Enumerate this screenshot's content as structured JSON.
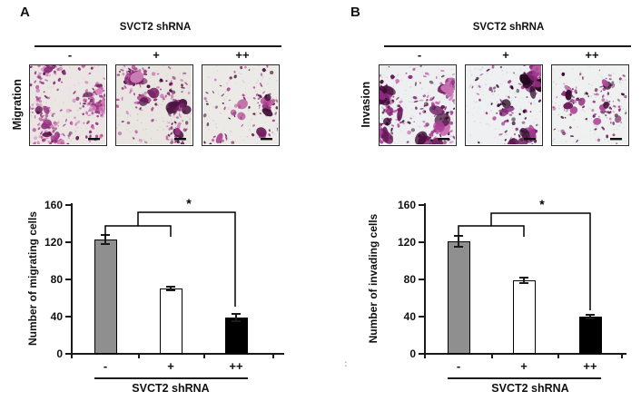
{
  "figure": {
    "background": "#ffffff",
    "stray_mark": ":",
    "panels": [
      {
        "letter": "A",
        "treatment_header": "SVCT2 shRNA",
        "doses": [
          "-",
          "+",
          "++"
        ],
        "row_label": "Migration",
        "micrographs": [
          {
            "dose": "-",
            "description": "dense crystal-violet stained migrated cells"
          },
          {
            "dose": "+",
            "description": "moderate stained migrated cells"
          },
          {
            "dose": "++",
            "description": "sparse stained migrated cells"
          }
        ]
      },
      {
        "letter": "B",
        "treatment_header": "SVCT2 shRNA",
        "doses": [
          "-",
          "+",
          "++"
        ],
        "row_label": "Invasion",
        "micrographs": [
          {
            "dose": "-",
            "description": "dense crystal-violet stained invading cells"
          },
          {
            "dose": "+",
            "description": "moderate stained invading cells with dark clusters"
          },
          {
            "dose": "++",
            "description": "sparse stained invading cells"
          }
        ]
      }
    ]
  },
  "chart_data": [
    {
      "type": "bar",
      "title": "",
      "categories": [
        "-",
        "+",
        "++"
      ],
      "values": [
        123,
        70,
        39
      ],
      "errors": [
        5,
        2,
        4
      ],
      "bar_colors": [
        "#8f8f8f",
        "#ffffff",
        "#000000"
      ],
      "xlabel": "SVCT2 shRNA",
      "ylabel": "Number of migrating cells",
      "ylim": [
        0,
        160
      ],
      "yticks": [
        0,
        40,
        80,
        120,
        160
      ],
      "grid": false,
      "legend": null,
      "significance": {
        "label": "*",
        "comparison": "- and + grouped vs ++"
      }
    },
    {
      "type": "bar",
      "title": "",
      "categories": [
        "-",
        "+",
        "++"
      ],
      "values": [
        121,
        79,
        40
      ],
      "errors": [
        6,
        3,
        2
      ],
      "bar_colors": [
        "#8f8f8f",
        "#ffffff",
        "#000000"
      ],
      "xlabel": "SVCT2 shRNA",
      "ylabel": "Number of invading cells",
      "ylim": [
        0,
        160
      ],
      "yticks": [
        0,
        40,
        80,
        120,
        160
      ],
      "grid": false,
      "legend": null,
      "significance": {
        "label": "*",
        "comparison": "- and + grouped vs ++"
      }
    }
  ]
}
